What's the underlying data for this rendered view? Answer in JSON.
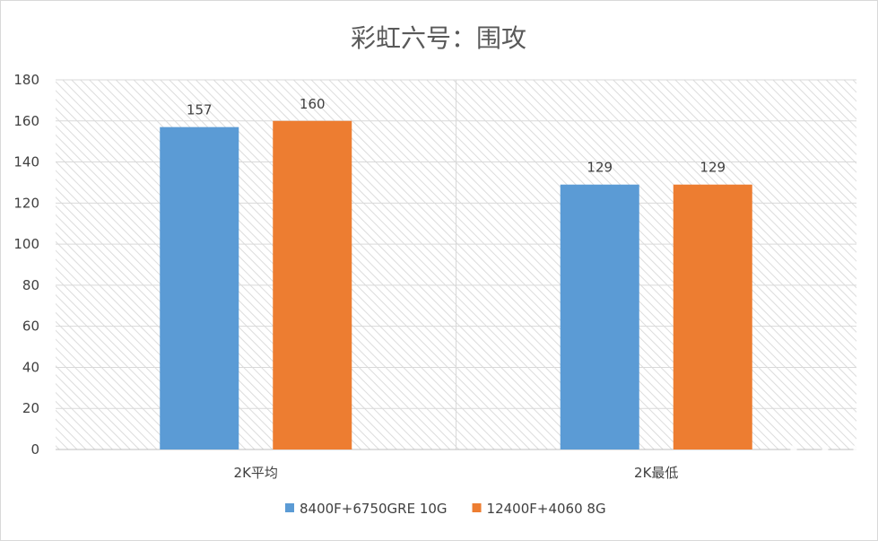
{
  "chart_data": {
    "type": "bar",
    "title": "彩虹六号：围攻",
    "categories": [
      "2K平均",
      "2K最低"
    ],
    "series": [
      {
        "name": "8400F+6750GRE 10G",
        "values": [
          157,
          129
        ],
        "color": "#5b9bd5"
      },
      {
        "name": "12400F+4060 8G",
        "values": [
          160,
          129
        ],
        "color": "#ed7d31"
      }
    ],
    "ylim": [
      0,
      180
    ],
    "yticks": [
      0,
      20,
      40,
      60,
      80,
      100,
      120,
      140,
      160,
      180
    ],
    "grid": true,
    "legend": "bottom",
    "data_labels": true
  },
  "watermark": {
    "logo_text": "chiphell",
    "url_text": "www.chiphell.com"
  }
}
